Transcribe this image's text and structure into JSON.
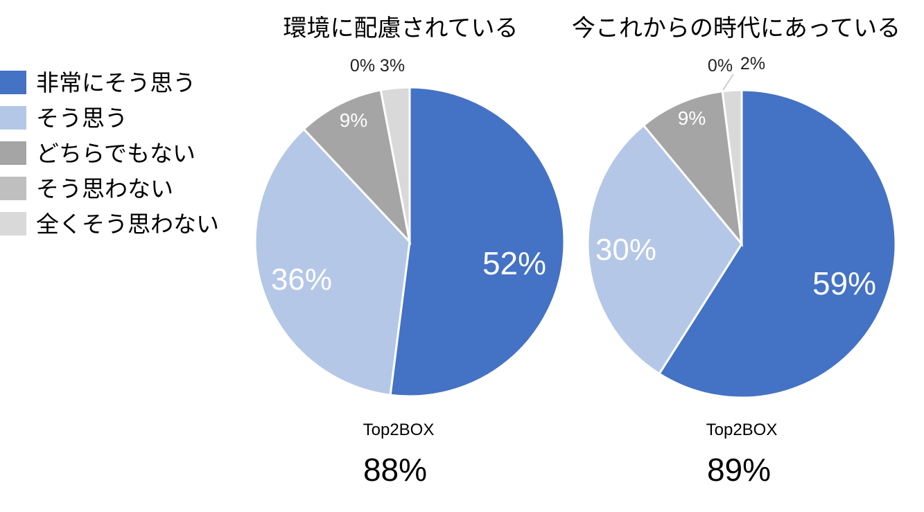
{
  "legend": [
    {
      "label": "非常にそう思う",
      "color": "#4472c4"
    },
    {
      "label": "そう思う",
      "color": "#b4c7e7"
    },
    {
      "label": "どちらでもない",
      "color": "#a5a5a5"
    },
    {
      "label": "そう思わない",
      "color": "#bfbfbf"
    },
    {
      "label": "全くそう思わない",
      "color": "#d9d9d9"
    }
  ],
  "chart_data": [
    {
      "type": "pie",
      "title": "環境に配慮されている",
      "categories": [
        "非常にそう思う",
        "そう思う",
        "どちらでもない",
        "そう思わない",
        "全くそう思わない"
      ],
      "values": [
        52,
        36,
        9,
        0,
        3
      ],
      "labels": [
        "52%",
        "36%",
        "9%",
        "0%",
        "3%"
      ],
      "colors": [
        "#4472c4",
        "#b4c7e7",
        "#a5a5a5",
        "#bfbfbf",
        "#d9d9d9"
      ],
      "top2box_label": "Top2BOX",
      "top2box_value": "88%"
    },
    {
      "type": "pie",
      "title": "今これからの時代にあっている",
      "categories": [
        "非常にそう思う",
        "そう思う",
        "どちらでもない",
        "そう思わない",
        "全くそう思わない"
      ],
      "values": [
        59,
        30,
        9,
        0,
        2
      ],
      "labels": [
        "59%",
        "30%",
        "9%",
        "0%",
        "2%"
      ],
      "colors": [
        "#4472c4",
        "#b4c7e7",
        "#a5a5a5",
        "#bfbfbf",
        "#d9d9d9"
      ],
      "top2box_label": "Top2BOX",
      "top2box_value": "89%"
    }
  ]
}
